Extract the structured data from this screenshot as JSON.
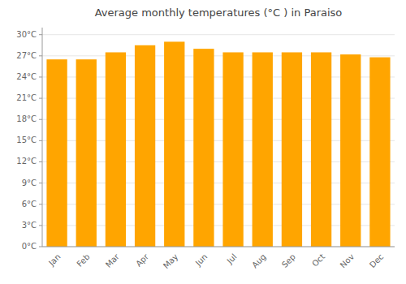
{
  "chart_data": {
    "type": "bar",
    "title": "Average monthly temperatures (°C ) in Paraiso",
    "categories": [
      "Jan",
      "Feb",
      "Mar",
      "Apr",
      "May",
      "Jun",
      "Jul",
      "Aug",
      "Sep",
      "Oct",
      "Nov",
      "Dec"
    ],
    "values": [
      26.5,
      26.5,
      27.5,
      28.5,
      29.0,
      28.0,
      27.5,
      27.5,
      27.5,
      27.5,
      27.2,
      26.8
    ],
    "color": "#FFA500",
    "ylim": [
      0,
      31
    ],
    "yticks": [
      {
        "value": 0,
        "label": "0°C"
      },
      {
        "value": 3,
        "label": "3°C"
      },
      {
        "value": 6,
        "label": "6°C"
      },
      {
        "value": 9,
        "label": "9°C"
      },
      {
        "value": 12,
        "label": "12°C"
      },
      {
        "value": 15,
        "label": "15°C"
      },
      {
        "value": 18,
        "label": "18°C"
      },
      {
        "value": 21,
        "label": "21°C"
      },
      {
        "value": 24,
        "label": "24°C"
      },
      {
        "value": 27,
        "label": "27°C"
      },
      {
        "value": 30,
        "label": "30°C"
      }
    ],
    "grid": true
  }
}
